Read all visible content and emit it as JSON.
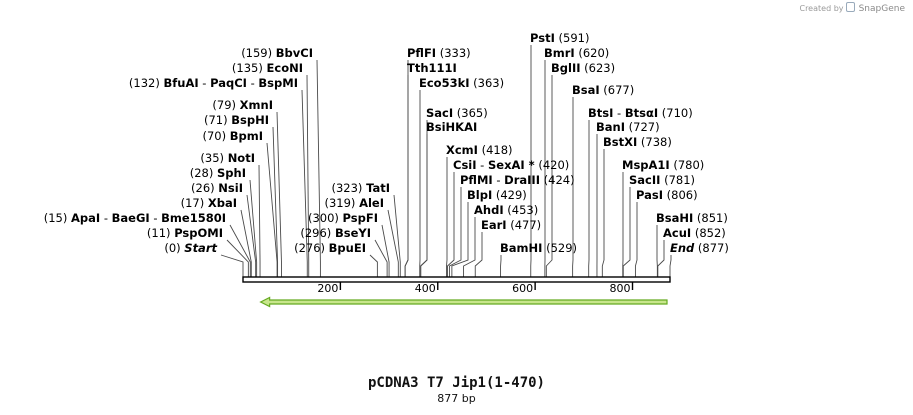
{
  "credit": {
    "prefix": "Created by",
    "brand": "SnapGene",
    "logo_icon": "snapgene-logo-icon"
  },
  "plasmid": {
    "name": "pCDNA3 T7 Jip1(1-470)",
    "length_label": "877 bp",
    "length": 877
  },
  "ruler": {
    "ticks": [
      200,
      400,
      600,
      800
    ]
  },
  "feature": {
    "name": "arrow feature",
    "direction": "reverse",
    "start": 28,
    "end": 877,
    "color": "#c8e68c",
    "stroke": "#66aa22"
  },
  "sites": [
    {
      "id": "start",
      "pos": 0,
      "pos_label": "(0)",
      "parts": [
        "Start"
      ],
      "italic": true
    },
    {
      "id": "psp-omi",
      "pos": 11,
      "pos_label": "(11)",
      "parts": [
        "PspOMI"
      ]
    },
    {
      "id": "apai",
      "pos": 15,
      "pos_label": "(15)",
      "parts": [
        "ApaI",
        "BaeGI",
        "Bme1580I"
      ]
    },
    {
      "id": "xbai",
      "pos": 17,
      "pos_label": "(17)",
      "parts": [
        "XbaI"
      ]
    },
    {
      "id": "nsii",
      "pos": 26,
      "pos_label": "(26)",
      "parts": [
        "NsiI"
      ]
    },
    {
      "id": "sphi",
      "pos": 28,
      "pos_label": "(28)",
      "parts": [
        "SphI"
      ]
    },
    {
      "id": "noti",
      "pos": 35,
      "pos_label": "(35)",
      "parts": [
        "NotI"
      ]
    },
    {
      "id": "bpmi",
      "pos": 70,
      "pos_label": "(70)",
      "parts": [
        "BpmI"
      ]
    },
    {
      "id": "bsphi",
      "pos": 71,
      "pos_label": "(71)",
      "parts": [
        "BspHI"
      ]
    },
    {
      "id": "xmni",
      "pos": 79,
      "pos_label": "(79)",
      "parts": [
        "XmnI"
      ]
    },
    {
      "id": "bfuai",
      "pos": 132,
      "pos_label": "(132)",
      "parts": [
        "BfuAI",
        "PaqCI",
        "BspMI"
      ]
    },
    {
      "id": "econi",
      "pos": 135,
      "pos_label": "(135)",
      "parts": [
        "EcoNI"
      ]
    },
    {
      "id": "bbvci",
      "pos": 159,
      "pos_label": "(159)",
      "parts": [
        "BbvCI"
      ]
    },
    {
      "id": "bpuei",
      "pos": 276,
      "pos_label": "(276)",
      "parts": [
        "BpuEI"
      ]
    },
    {
      "id": "bseyi",
      "pos": 296,
      "pos_label": "(296)",
      "parts": [
        "BseYI"
      ]
    },
    {
      "id": "pspfi",
      "pos": 300,
      "pos_label": "(300)",
      "parts": [
        "PspFI"
      ]
    },
    {
      "id": "alei",
      "pos": 319,
      "pos_label": "(319)",
      "parts": [
        "AleI"
      ]
    },
    {
      "id": "tati",
      "pos": 323,
      "pos_label": "(323)",
      "parts": [
        "TatI"
      ]
    },
    {
      "id": "pflfi",
      "pos": 333,
      "pos_label": "(333)",
      "parts": [
        "PflFI"
      ]
    },
    {
      "id": "tth111i",
      "pos": 333,
      "pos_label": "",
      "parts": [
        "Tth111I"
      ]
    },
    {
      "id": "eco53ki",
      "pos": 363,
      "pos_label": "(363)",
      "parts": [
        "Eco53kI"
      ]
    },
    {
      "id": "saci",
      "pos": 365,
      "pos_label": "(365)",
      "parts": [
        "SacI"
      ]
    },
    {
      "id": "bsihkai",
      "pos": 365,
      "pos_label": "",
      "parts": [
        "BsiHKAI"
      ]
    },
    {
      "id": "xcmi",
      "pos": 418,
      "pos_label": "(418)",
      "parts": [
        "XcmI"
      ]
    },
    {
      "id": "csii",
      "pos": 420,
      "pos_label": "(420)",
      "parts": [
        "CsiI",
        "SexAI *"
      ]
    },
    {
      "id": "pflmi",
      "pos": 424,
      "pos_label": "(424)",
      "parts": [
        "PflMI",
        "DraIII"
      ]
    },
    {
      "id": "blpi",
      "pos": 429,
      "pos_label": "(429)",
      "parts": [
        "BlpI"
      ]
    },
    {
      "id": "ahdi",
      "pos": 453,
      "pos_label": "(453)",
      "parts": [
        "AhdI"
      ]
    },
    {
      "id": "eari",
      "pos": 477,
      "pos_label": "(477)",
      "parts": [
        "EarI"
      ]
    },
    {
      "id": "bamhi",
      "pos": 529,
      "pos_label": "(529)",
      "parts": [
        "BamHI"
      ]
    },
    {
      "id": "psti",
      "pos": 591,
      "pos_label": "(591)",
      "parts": [
        "PstI"
      ]
    },
    {
      "id": "bmri",
      "pos": 620,
      "pos_label": "(620)",
      "parts": [
        "BmrI"
      ]
    },
    {
      "id": "bglii",
      "pos": 623,
      "pos_label": "(623)",
      "parts": [
        "BglII"
      ]
    },
    {
      "id": "bsai",
      "pos": 677,
      "pos_label": "(677)",
      "parts": [
        "BsaI"
      ]
    },
    {
      "id": "btsi",
      "pos": 710,
      "pos_label": "(710)",
      "parts": [
        "BtsI",
        "BtsαI"
      ]
    },
    {
      "id": "bani",
      "pos": 727,
      "pos_label": "(727)",
      "parts": [
        "BanI"
      ]
    },
    {
      "id": "bstxi",
      "pos": 738,
      "pos_label": "(738)",
      "parts": [
        "BstXI"
      ]
    },
    {
      "id": "mspa1i",
      "pos": 780,
      "pos_label": "(780)",
      "parts": [
        "MspA1I"
      ]
    },
    {
      "id": "sacii",
      "pos": 781,
      "pos_label": "(781)",
      "parts": [
        "SacII"
      ]
    },
    {
      "id": "pasi",
      "pos": 806,
      "pos_label": "(806)",
      "parts": [
        "PasI"
      ]
    },
    {
      "id": "bsahi",
      "pos": 851,
      "pos_label": "(851)",
      "parts": [
        "BsaHI"
      ]
    },
    {
      "id": "acui",
      "pos": 852,
      "pos_label": "(852)",
      "parts": [
        "AcuI"
      ]
    },
    {
      "id": "end",
      "pos": 877,
      "pos_label": "(877)",
      "parts": [
        "End"
      ],
      "italic": true
    }
  ]
}
